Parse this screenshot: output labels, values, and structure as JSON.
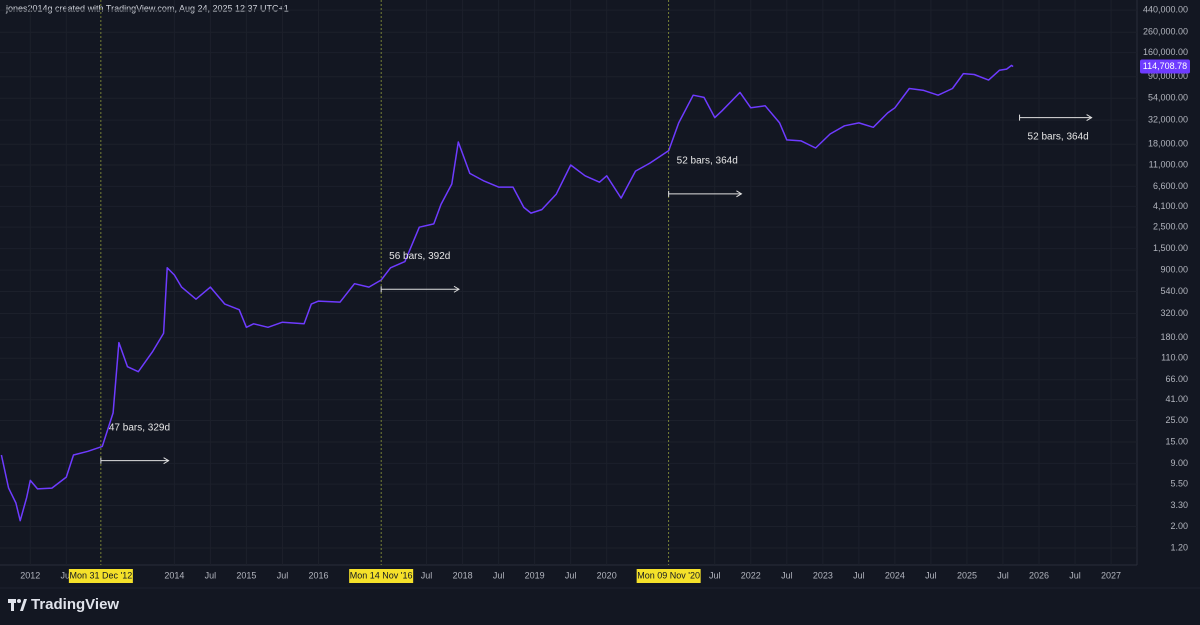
{
  "header": "jones2014g created with TradingView.com, Aug 24, 2025 12:37 UTC+1",
  "brand": "TradingView",
  "chart_data": {
    "type": "line",
    "log_scale": true,
    "grid": true,
    "color": "#6e3bff",
    "x": [
      2011.6,
      2011.7,
      2011.8,
      2011.86,
      2011.95,
      2012.0,
      2012.1,
      2012.3,
      2012.5,
      2012.6,
      2012.8,
      2013.0,
      2013.15,
      2013.23,
      2013.35,
      2013.5,
      2013.7,
      2013.85,
      2013.9,
      2014.0,
      2014.1,
      2014.3,
      2014.5,
      2014.7,
      2014.9,
      2015.0,
      2015.1,
      2015.3,
      2015.5,
      2015.8,
      2015.9,
      2016.0,
      2016.3,
      2016.5,
      2016.7,
      2016.87,
      2017.0,
      2017.2,
      2017.4,
      2017.6,
      2017.7,
      2017.85,
      2017.94,
      2018.1,
      2018.3,
      2018.5,
      2018.7,
      2018.85,
      2018.95,
      2019.1,
      2019.3,
      2019.5,
      2019.7,
      2019.9,
      2020.0,
      2020.2,
      2020.4,
      2020.6,
      2020.86,
      2021.0,
      2021.2,
      2021.35,
      2021.5,
      2021.6,
      2021.85,
      2022.0,
      2022.2,
      2022.4,
      2022.5,
      2022.7,
      2022.9,
      2023.1,
      2023.3,
      2023.5,
      2023.7,
      2023.9,
      2024.0,
      2024.2,
      2024.4,
      2024.6,
      2024.8,
      2024.95,
      2025.1,
      2025.3,
      2025.45,
      2025.55,
      2025.62,
      2025.64
    ],
    "values": [
      11,
      5,
      3.5,
      2.3,
      4,
      6,
      4.9,
      5,
      6.5,
      11,
      12,
      13.5,
      30,
      160,
      90,
      80,
      130,
      200,
      950,
      800,
      600,
      450,
      600,
      400,
      350,
      230,
      250,
      230,
      260,
      250,
      400,
      430,
      420,
      650,
      600,
      710,
      950,
      1100,
      2500,
      2700,
      4300,
      7000,
      19000,
      9000,
      7500,
      6500,
      6500,
      4000,
      3500,
      3800,
      5500,
      11000,
      8500,
      7300,
      8500,
      5000,
      9500,
      11500,
      15500,
      30000,
      58000,
      55000,
      34000,
      40000,
      62000,
      43000,
      45000,
      30000,
      20000,
      19500,
      16500,
      23000,
      28000,
      30000,
      27000,
      38000,
      43000,
      68000,
      65000,
      58000,
      68000,
      97000,
      95000,
      83000,
      105000,
      108000,
      118000,
      114708.78
    ],
    "last_price_label": "114,708.78",
    "xlim": [
      2011.58,
      2027.36
    ],
    "ylim": [
      0.8,
      560000
    ],
    "xticks": [
      {
        "value": 2012,
        "label": "2012"
      },
      {
        "value": 2012.5,
        "label": "Jul"
      },
      {
        "value": 2014,
        "label": "2014"
      },
      {
        "value": 2014.5,
        "label": "Jul"
      },
      {
        "value": 2015,
        "label": "2015"
      },
      {
        "value": 2015.5,
        "label": "Jul"
      },
      {
        "value": 2016,
        "label": "2016"
      },
      {
        "value": 2017.5,
        "label": "Jul"
      },
      {
        "value": 2018,
        "label": "2018"
      },
      {
        "value": 2018.5,
        "label": "Jul"
      },
      {
        "value": 2019,
        "label": "2019"
      },
      {
        "value": 2019.5,
        "label": "Jul"
      },
      {
        "value": 2020,
        "label": "2020"
      },
      {
        "value": 2021.5,
        "label": "Jul"
      },
      {
        "value": 2022,
        "label": "2022"
      },
      {
        "value": 2022.5,
        "label": "Jul"
      },
      {
        "value": 2023,
        "label": "2023"
      },
      {
        "value": 2023.5,
        "label": "Jul"
      },
      {
        "value": 2024,
        "label": "2024"
      },
      {
        "value": 2024.5,
        "label": "Jul"
      },
      {
        "value": 2025,
        "label": "2025"
      },
      {
        "value": 2025.5,
        "label": "Jul"
      },
      {
        "value": 2026,
        "label": "2026"
      },
      {
        "value": 2026.5,
        "label": "Jul"
      },
      {
        "value": 2027,
        "label": "2027"
      }
    ],
    "yticks": [
      {
        "value": 1.2,
        "label": "1.20"
      },
      {
        "value": 2,
        "label": "2.00"
      },
      {
        "value": 3.3,
        "label": "3.30"
      },
      {
        "value": 5.5,
        "label": "5.50"
      },
      {
        "value": 9,
        "label": "9.00"
      },
      {
        "value": 15,
        "label": "15.00"
      },
      {
        "value": 25,
        "label": "25.00"
      },
      {
        "value": 41,
        "label": "41.00"
      },
      {
        "value": 66,
        "label": "66.00"
      },
      {
        "value": 110,
        "label": "110.00"
      },
      {
        "value": 180,
        "label": "180.00"
      },
      {
        "value": 320,
        "label": "320.00"
      },
      {
        "value": 540,
        "label": "540.00"
      },
      {
        "value": 900,
        "label": "900.00"
      },
      {
        "value": 1500,
        "label": "1,500.00"
      },
      {
        "value": 2500,
        "label": "2,500.00"
      },
      {
        "value": 4100,
        "label": "4,100.00"
      },
      {
        "value": 6600,
        "label": "6,600.00"
      },
      {
        "value": 11000,
        "label": "11,000.00"
      },
      {
        "value": 18000,
        "label": "18,000.00"
      },
      {
        "value": 32000,
        "label": "32,000.00"
      },
      {
        "value": 54000,
        "label": "54,000.00"
      },
      {
        "value": 90000,
        "label": "90,000.00"
      },
      {
        "value": 160000,
        "label": "160,000.00"
      },
      {
        "value": 260000,
        "label": "260,000.00"
      },
      {
        "value": 440000,
        "label": "440,000.00"
      }
    ],
    "markers": [
      {
        "label": "Mon 31 Dec '12",
        "x": 2012.98
      },
      {
        "label": "Mon 14 Nov '16",
        "x": 2016.87
      },
      {
        "label": "Mon 09 Nov '20",
        "x": 2020.86
      }
    ],
    "annotations": [
      {
        "text": "47 bars, 329d",
        "x": [
          2012.98,
          2013.92
        ],
        "y": 9.6
      },
      {
        "text": "56 bars, 392d",
        "x": [
          2016.87,
          2017.95
        ],
        "y": 570
      },
      {
        "text": "52 bars, 364d",
        "x": [
          2020.86,
          2021.87
        ],
        "y": 5530
      },
      {
        "text": "52 bars, 364d",
        "x": [
          2025.73,
          2026.73
        ],
        "y": 34000
      }
    ]
  }
}
